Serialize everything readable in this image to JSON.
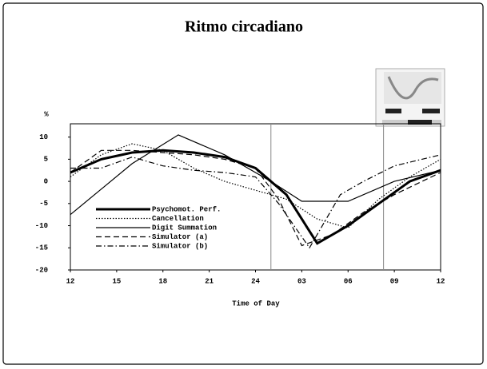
{
  "chart_data": {
    "type": "line",
    "title": "Ritmo circadiano",
    "y_label": "%",
    "x_label": "Time of Day",
    "xlim": [
      12,
      36
    ],
    "ylim": [
      -20,
      13
    ],
    "xticks": [
      12,
      15,
      18,
      21,
      24,
      {
        "value": 27,
        "label": "03"
      },
      {
        "value": 30,
        "label": "06"
      },
      {
        "value": 33,
        "label": "09"
      },
      {
        "value": 36,
        "label": "12"
      }
    ],
    "yticks": [
      10,
      5,
      0,
      -5,
      -10,
      -15,
      -20
    ],
    "reference_lines": [
      25,
      32.3
    ],
    "series": [
      {
        "name": "Psychomot. Perf.",
        "color": "#000000",
        "width": 3,
        "dash": "none",
        "x": [
          12,
          14,
          16,
          18,
          20,
          22,
          24,
          26,
          28,
          30,
          32,
          34,
          36
        ],
        "values": [
          2,
          5,
          6.5,
          7,
          6.5,
          5.5,
          3,
          -3,
          -14,
          -10,
          -5,
          0,
          2.5
        ]
      },
      {
        "name": "Cancellation",
        "color": "#000000",
        "width": 1.2,
        "dash": "1.5,2",
        "x": [
          12,
          14,
          16,
          18,
          20,
          22,
          24,
          26,
          28,
          30,
          32,
          34,
          36
        ],
        "values": [
          1,
          6,
          8.5,
          7,
          3,
          0,
          -2,
          -4,
          -8.5,
          -10.5,
          -4,
          1,
          5
        ]
      },
      {
        "name": "Digit Summation",
        "color": "#000000",
        "width": 1.2,
        "dash": "none",
        "x": [
          12,
          16,
          19,
          22,
          25,
          27,
          30,
          33,
          36
        ],
        "values": [
          -7.5,
          4,
          10.5,
          6,
          0,
          -4.5,
          -4.5,
          0,
          2.5
        ]
      },
      {
        "name": "Simulator (a)",
        "color": "#000000",
        "width": 1.2,
        "dash": "7,4",
        "x": [
          12,
          14,
          16,
          18,
          20,
          22,
          24,
          25.5,
          27,
          29,
          31,
          33,
          36
        ],
        "values": [
          2,
          7,
          7,
          6.5,
          6,
          5,
          3,
          -4,
          -14.5,
          -12,
          -7,
          -3,
          2
        ]
      },
      {
        "name": "Simulator (b)",
        "color": "#000000",
        "width": 1.2,
        "dash": "7,3,1.5,3",
        "x": [
          12,
          14,
          16,
          18,
          20,
          22,
          24,
          25.5,
          27.5,
          29.5,
          31,
          33,
          36
        ],
        "values": [
          3,
          3,
          5.5,
          3.5,
          2.5,
          2,
          1,
          -5,
          -15,
          -3,
          0,
          3.5,
          6
        ]
      }
    ]
  }
}
